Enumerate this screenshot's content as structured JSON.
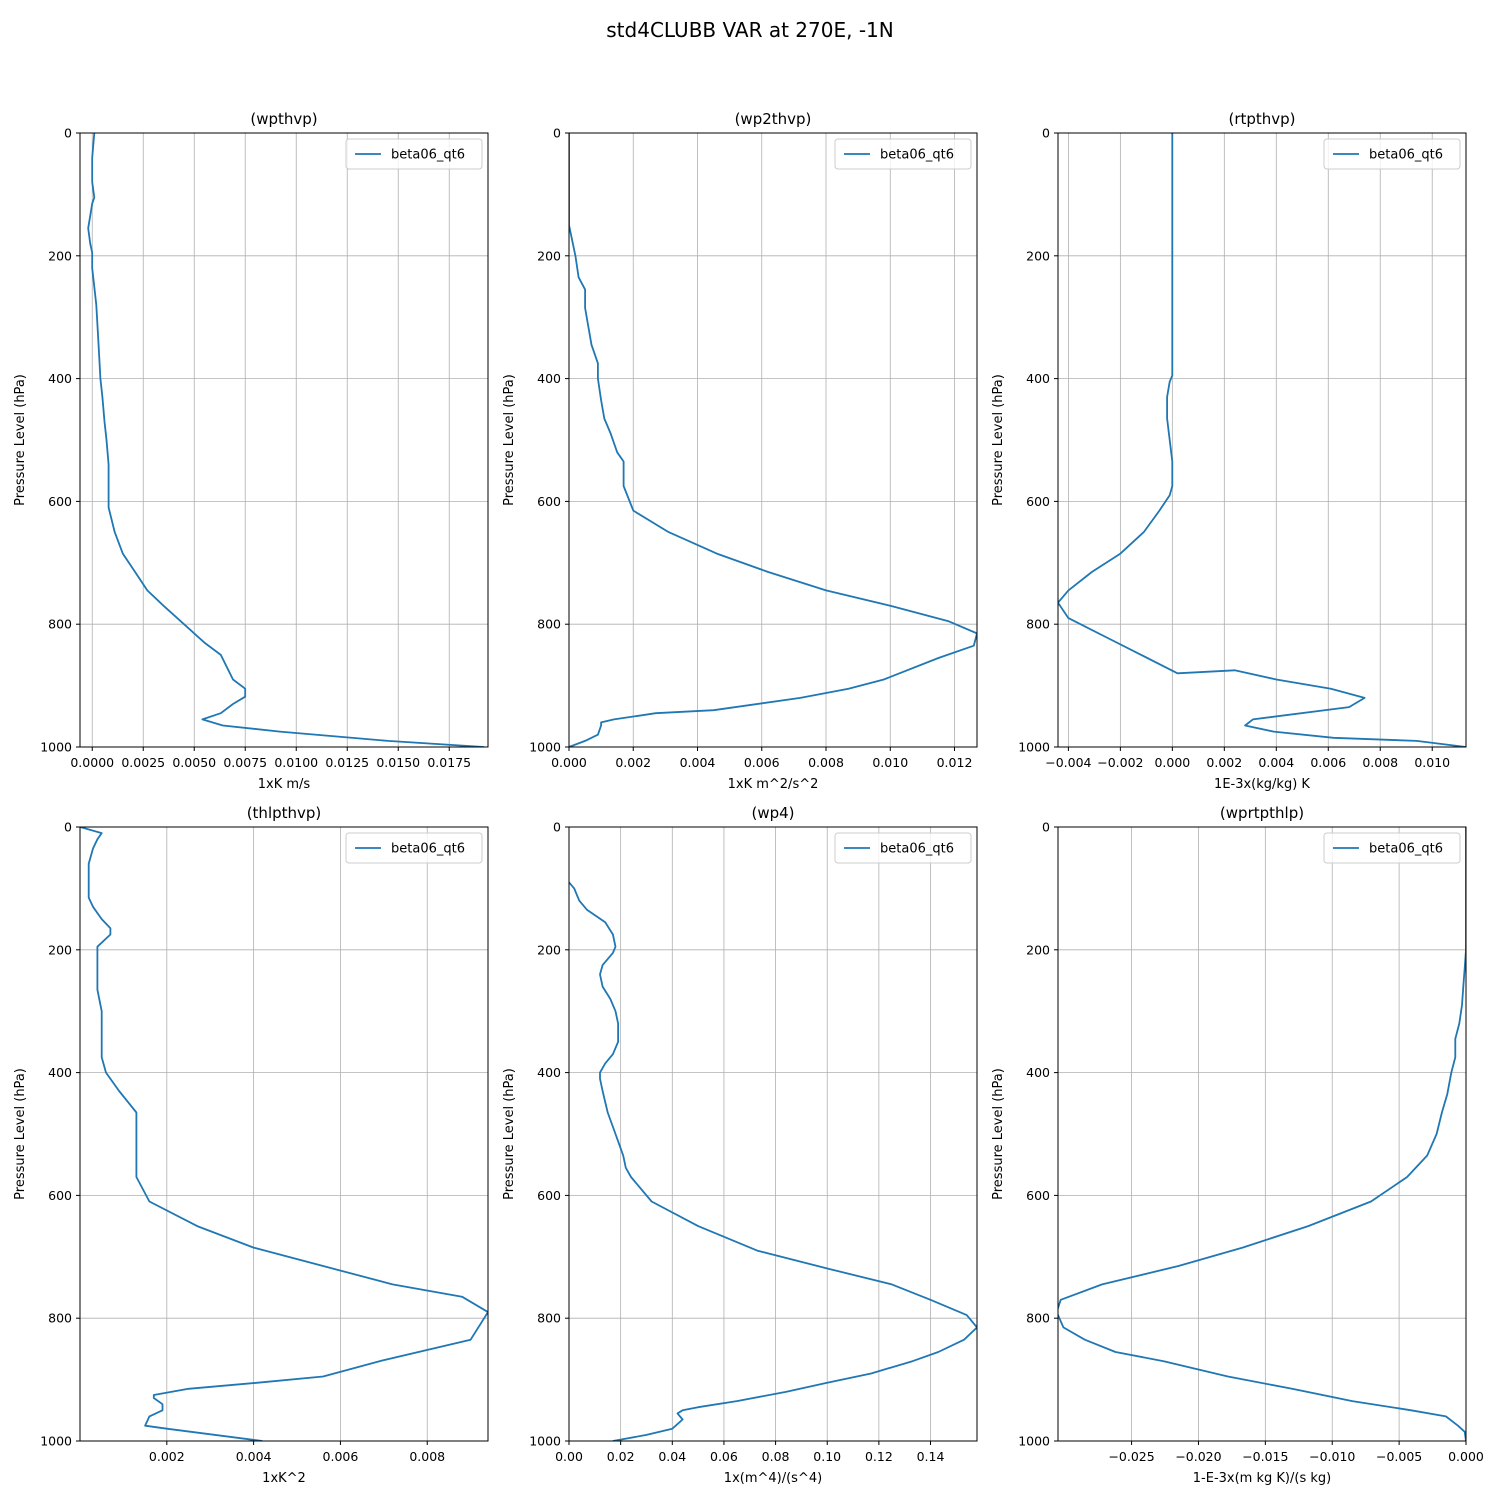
{
  "figure": {
    "suptitle": "std4CLUBB VAR at 270E, -1N",
    "line_color": "#1f77b4"
  },
  "chart_data": [
    {
      "type": "line",
      "title": "(wpthvp)",
      "xlabel": "1xK m/s",
      "ylabel": "Pressure Level (hPa)",
      "xlim": [
        -0.0006,
        0.0194
      ],
      "ylim": [
        1000,
        0
      ],
      "xticks": [
        "0.0000",
        "0.0025",
        "0.0050",
        "0.0075",
        "0.0100",
        "0.0125",
        "0.0150",
        "0.0175"
      ],
      "xtick_values": [
        0,
        0.0025,
        0.005,
        0.0075,
        0.01,
        0.0125,
        0.015,
        0.0175
      ],
      "yticks": [
        "0",
        "200",
        "400",
        "600",
        "800",
        "1000"
      ],
      "ytick_values": [
        0,
        200,
        400,
        600,
        800,
        1000
      ],
      "grid": true,
      "legend": "top-right",
      "series": [
        {
          "name": "beta06_qt6",
          "x": [
            0.0001,
            0.0,
            0.0,
            0.0001,
            0.0,
            -0.0002,
            -0.0001,
            0.0,
            0.0,
            0.0002,
            0.0003,
            0.0004,
            0.0005,
            0.0006,
            0.0007,
            0.0008,
            0.0008,
            0.0008,
            0.0008,
            0.0011,
            0.0015,
            0.0021,
            0.0027,
            0.0035,
            0.0045,
            0.0055,
            0.0063,
            0.0066,
            0.0069,
            0.0075,
            0.0075,
            0.0069,
            0.0063,
            0.0054,
            0.0064,
            0.0092,
            0.0145,
            0.0192
          ],
          "y": [
            0,
            40,
            80,
            105,
            115,
            155,
            180,
            195,
            220,
            280,
            340,
            400,
            430,
            470,
            500,
            540,
            570,
            590,
            610,
            650,
            685,
            715,
            745,
            770,
            800,
            830,
            850,
            870,
            890,
            905,
            918,
            930,
            945,
            955,
            965,
            975,
            990,
            1000
          ]
        }
      ]
    },
    {
      "type": "line",
      "title": "(wp2thvp)",
      "xlabel": "1xK m^2/s^2",
      "ylabel": "Pressure Level (hPa)",
      "xlim": [
        0,
        0.0127
      ],
      "ylim": [
        1000,
        0
      ],
      "xticks": [
        "0.000",
        "0.002",
        "0.004",
        "0.006",
        "0.008",
        "0.010",
        "0.012"
      ],
      "xtick_values": [
        0,
        0.002,
        0.004,
        0.006,
        0.008,
        0.01,
        0.012
      ],
      "yticks": [
        "0",
        "200",
        "400",
        "600",
        "800",
        "1000"
      ],
      "ytick_values": [
        0,
        200,
        400,
        600,
        800,
        1000
      ],
      "grid": true,
      "legend": "top-right",
      "series": [
        {
          "name": "beta06_qt6",
          "x": [
            0.0,
            0.0,
            0.0,
            0.0002,
            0.0003,
            0.0005,
            0.0005,
            0.0006,
            0.0007,
            0.0009,
            0.0009,
            0.001,
            0.0011,
            0.0013,
            0.0015,
            0.0017,
            0.0017,
            0.002,
            0.0031,
            0.0046,
            0.0062,
            0.008,
            0.01,
            0.0118,
            0.0127,
            0.0126,
            0.0115,
            0.0098,
            0.0087,
            0.0072,
            0.0045,
            0.0027,
            0.0014,
            0.001,
            0.001,
            0.0009,
            0.0005,
            0.0
          ],
          "y": [
            0,
            100,
            150,
            200,
            235,
            255,
            285,
            315,
            345,
            375,
            400,
            435,
            465,
            490,
            520,
            535,
            575,
            615,
            650,
            685,
            715,
            745,
            770,
            795,
            815,
            835,
            855,
            890,
            905,
            920,
            940,
            945,
            955,
            960,
            965,
            980,
            990,
            1000
          ]
        }
      ]
    },
    {
      "type": "line",
      "title": "(rtpthvp)",
      "xlabel": "1E-3x(kg/kg) K",
      "ylabel": "Pressure Level (hPa)",
      "xlim": [
        -0.0044,
        0.0113
      ],
      "ylim": [
        1000,
        0
      ],
      "xticks": [
        "−0.004",
        "−0.002",
        "0.000",
        "0.002",
        "0.004",
        "0.006",
        "0.008",
        "0.010"
      ],
      "xtick_values": [
        -0.004,
        -0.002,
        0,
        0.002,
        0.004,
        0.006,
        0.008,
        0.01
      ],
      "yticks": [
        "0",
        "200",
        "400",
        "600",
        "800",
        "1000"
      ],
      "ytick_values": [
        0,
        200,
        400,
        600,
        800,
        1000
      ],
      "grid": true,
      "legend": "top-right",
      "series": [
        {
          "name": "beta06_qt6",
          "x": [
            0.0,
            0.0,
            0.0,
            0.0,
            0.0,
            0.0,
            -0.0001,
            -0.0002,
            -0.0002,
            -0.0001,
            0.0,
            0.0,
            -0.0001,
            -0.0005,
            -0.0011,
            -0.002,
            -0.0031,
            -0.004,
            -0.0044,
            -0.004,
            -0.0026,
            -0.0012,
            0.0002,
            0.0024,
            0.004,
            0.0061,
            0.0074,
            0.0068,
            0.0031,
            0.0028,
            0.0039,
            0.0062,
            0.0094,
            0.0113
          ],
          "y": [
            0,
            100,
            200,
            280,
            350,
            395,
            405,
            430,
            465,
            500,
            535,
            575,
            590,
            615,
            650,
            685,
            715,
            745,
            765,
            790,
            820,
            850,
            880,
            875,
            890,
            905,
            920,
            935,
            955,
            965,
            975,
            985,
            990,
            1000
          ]
        }
      ]
    },
    {
      "type": "line",
      "title": "(thlpthvp)",
      "xlabel": "1xK^2",
      "ylabel": "Pressure Level (hPa)",
      "xlim": [
        0,
        0.0094
      ],
      "ylim": [
        1000,
        0
      ],
      "xticks": [
        "0.002",
        "0.004",
        "0.006",
        "0.008"
      ],
      "xtick_values": [
        0.002,
        0.004,
        0.006,
        0.008
      ],
      "yticks": [
        "0",
        "200",
        "400",
        "600",
        "800",
        "1000"
      ],
      "ytick_values": [
        0,
        200,
        400,
        600,
        800,
        1000
      ],
      "grid": true,
      "legend": "top-right",
      "series": [
        {
          "name": "beta06_qt6",
          "x": [
            0.0,
            0.0005,
            0.0004,
            0.0003,
            0.0002,
            0.0002,
            0.0002,
            0.0002,
            0.0003,
            0.0005,
            0.0007,
            0.0007,
            0.0004,
            0.0004,
            0.0004,
            0.0004,
            0.0004,
            0.0005,
            0.0005,
            0.0005,
            0.0005,
            0.0006,
            0.0009,
            0.0013,
            0.0013,
            0.0013,
            0.0013,
            0.0016,
            0.0027,
            0.004,
            0.0056,
            0.0072,
            0.0088,
            0.0094,
            0.009,
            0.0069,
            0.0056,
            0.0041,
            0.0025,
            0.0017,
            0.0017,
            0.0019,
            0.0019,
            0.0016,
            0.0015,
            0.002,
            0.0042
          ],
          "y": [
            0,
            10,
            20,
            35,
            60,
            75,
            100,
            115,
            130,
            150,
            165,
            175,
            195,
            215,
            235,
            245,
            265,
            300,
            330,
            350,
            375,
            400,
            430,
            465,
            500,
            535,
            570,
            610,
            650,
            685,
            715,
            745,
            765,
            790,
            835,
            870,
            895,
            905,
            915,
            925,
            930,
            940,
            950,
            960,
            975,
            980,
            1000
          ]
        }
      ]
    },
    {
      "type": "line",
      "title": "(wp4)",
      "xlabel": "1x(m^4)/(s^4)",
      "ylabel": "Pressure Level (hPa)",
      "xlim": [
        0,
        0.158
      ],
      "ylim": [
        1000,
        0
      ],
      "xticks": [
        "0.00",
        "0.02",
        "0.04",
        "0.06",
        "0.08",
        "0.10",
        "0.12",
        "0.14"
      ],
      "xtick_values": [
        0,
        0.02,
        0.04,
        0.06,
        0.08,
        0.1,
        0.12,
        0.14
      ],
      "yticks": [
        "0",
        "200",
        "400",
        "600",
        "800",
        "1000"
      ],
      "ytick_values": [
        0,
        200,
        400,
        600,
        800,
        1000
      ],
      "grid": true,
      "legend": "top-right",
      "series": [
        {
          "name": "beta06_qt6",
          "x": [
            0.0,
            0.002,
            0.003,
            0.004,
            0.007,
            0.014,
            0.017,
            0.018,
            0.017,
            0.013,
            0.012,
            0.013,
            0.016,
            0.018,
            0.019,
            0.019,
            0.017,
            0.014,
            0.012,
            0.012,
            0.013,
            0.015,
            0.018,
            0.021,
            0.022,
            0.024,
            0.032,
            0.05,
            0.073,
            0.101,
            0.125,
            0.14,
            0.154,
            0.158,
            0.153,
            0.143,
            0.133,
            0.117,
            0.1,
            0.084,
            0.065,
            0.05,
            0.044,
            0.042,
            0.044,
            0.04,
            0.03,
            0.017
          ],
          "y": [
            90,
            100,
            110,
            120,
            135,
            155,
            175,
            195,
            205,
            225,
            240,
            260,
            280,
            300,
            320,
            350,
            370,
            385,
            400,
            410,
            430,
            465,
            500,
            535,
            555,
            570,
            610,
            650,
            690,
            720,
            745,
            770,
            795,
            815,
            835,
            855,
            870,
            890,
            905,
            920,
            935,
            945,
            950,
            955,
            965,
            980,
            990,
            1000
          ]
        }
      ]
    },
    {
      "type": "line",
      "title": "(wprtpthlp)",
      "xlabel": "1-E-3x(m kg K)/(s kg)",
      "ylabel": "Pressure Level (hPa)",
      "xlim": [
        -0.0305,
        0
      ],
      "ylim": [
        1000,
        0
      ],
      "xticks": [
        "−0.025",
        "−0.020",
        "−0.015",
        "−0.010",
        "−0.005",
        "0.000"
      ],
      "xtick_values": [
        -0.025,
        -0.02,
        -0.015,
        -0.01,
        -0.005,
        0
      ],
      "yticks": [
        "0",
        "200",
        "400",
        "600",
        "800",
        "1000"
      ],
      "ytick_values": [
        0,
        200,
        400,
        600,
        800,
        1000
      ],
      "grid": true,
      "legend": "top-right",
      "series": [
        {
          "name": "beta06_qt6",
          "x": [
            0.0,
            0.0,
            0.0,
            -0.0001,
            -0.0002,
            -0.0003,
            -0.0005,
            -0.0008,
            -0.0008,
            -0.0011,
            -0.0014,
            -0.0018,
            -0.0022,
            -0.0029,
            -0.0044,
            -0.0071,
            -0.0118,
            -0.0167,
            -0.0215,
            -0.0272,
            -0.0303,
            -0.0306,
            -0.0301,
            -0.0285,
            -0.0262,
            -0.0226,
            -0.0178,
            -0.013,
            -0.0085,
            -0.0041,
            -0.0015,
            -0.0006,
            -0.0001,
            0.0
          ],
          "y": [
            0,
            100,
            200,
            230,
            260,
            290,
            320,
            345,
            375,
            400,
            435,
            465,
            500,
            535,
            570,
            610,
            650,
            685,
            715,
            745,
            770,
            790,
            815,
            835,
            855,
            870,
            895,
            915,
            935,
            950,
            960,
            975,
            985,
            1000
          ]
        }
      ]
    }
  ]
}
